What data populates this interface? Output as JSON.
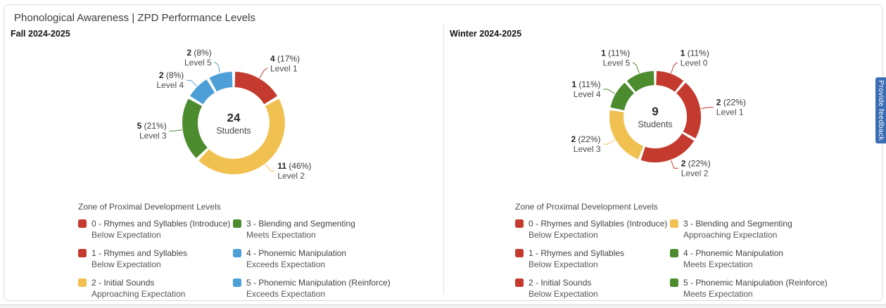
{
  "page_title": "Phonological Awareness | ZPD Performance Levels",
  "feedback_tab": {
    "label": "Provide feedback",
    "color": "#3a6db4"
  },
  "colors": {
    "red": "#c43a2e",
    "yellow": "#f0c150",
    "green": "#4c8b2e",
    "blue": "#4d9fd8",
    "card_border": "#d7d9dc"
  },
  "chart_data": [
    {
      "type": "donut",
      "title": "Fall 2024-2025",
      "center_value": "24",
      "center_label": "Students",
      "segments": [
        {
          "label": "Level 1",
          "value": 4,
          "pct": 17,
          "color": "#c43a2e"
        },
        {
          "label": "Level 2",
          "value": 11,
          "pct": 46,
          "color": "#f0c150"
        },
        {
          "label": "Level 3",
          "value": 5,
          "pct": 21,
          "color": "#4c8b2e"
        },
        {
          "label": "Level 4",
          "value": 2,
          "pct": 8,
          "color": "#4d9fd8"
        },
        {
          "label": "Level 5",
          "value": 2,
          "pct": 8,
          "color": "#4d9fd8"
        }
      ],
      "legend": {
        "title": "Zone of Proximal Development Levels",
        "items": [
          {
            "color": "#c43a2e",
            "label": "0 - Rhymes and Syllables (Introduce)",
            "sublabel": "Below Expectation"
          },
          {
            "color": "#c43a2e",
            "label": "1 - Rhymes and Syllables",
            "sublabel": "Below Expectation"
          },
          {
            "color": "#f0c150",
            "label": "2 - Initial Sounds",
            "sublabel": "Approaching Expectation"
          },
          {
            "color": "#4c8b2e",
            "label": "3 - Blending and Segmenting",
            "sublabel": "Meets Expectation"
          },
          {
            "color": "#4d9fd8",
            "label": "4 - Phonemic Manipulation",
            "sublabel": "Exceeds Expectation"
          },
          {
            "color": "#4d9fd8",
            "label": "5 - Phonemic Manipulation (Reinforce)",
            "sublabel": "Exceeds Expectation"
          }
        ]
      }
    },
    {
      "type": "donut",
      "title": "Winter 2024-2025",
      "center_value": "9",
      "center_label": "Students",
      "segments": [
        {
          "label": "Level 0",
          "value": 1,
          "pct": 11,
          "color": "#c43a2e"
        },
        {
          "label": "Level 1",
          "value": 2,
          "pct": 22,
          "color": "#c43a2e"
        },
        {
          "label": "Level 2",
          "value": 2,
          "pct": 22,
          "color": "#c43a2e"
        },
        {
          "label": "Level 3",
          "value": 2,
          "pct": 22,
          "color": "#f0c150"
        },
        {
          "label": "Level 4",
          "value": 1,
          "pct": 11,
          "color": "#4c8b2e"
        },
        {
          "label": "Level 5",
          "value": 1,
          "pct": 11,
          "color": "#4c8b2e"
        }
      ],
      "legend": {
        "title": "Zone of Proximal Development Levels",
        "items": [
          {
            "color": "#c43a2e",
            "label": "0 - Rhymes and Syllables (Introduce)",
            "sublabel": "Below Expectation"
          },
          {
            "color": "#c43a2e",
            "label": "1 - Rhymes and Syllables",
            "sublabel": "Below Expectation"
          },
          {
            "color": "#c43a2e",
            "label": "2 - Initial Sounds",
            "sublabel": "Below Expectation"
          },
          {
            "color": "#f0c150",
            "label": "3 - Blending and Segmenting",
            "sublabel": "Approaching Expectation"
          },
          {
            "color": "#4c8b2e",
            "label": "4 - Phonemic Manipulation",
            "sublabel": "Meets Expectation"
          },
          {
            "color": "#4c8b2e",
            "label": "5 - Phonemic Manipulation (Reinforce)",
            "sublabel": "Meets Expectation"
          }
        ]
      }
    }
  ]
}
